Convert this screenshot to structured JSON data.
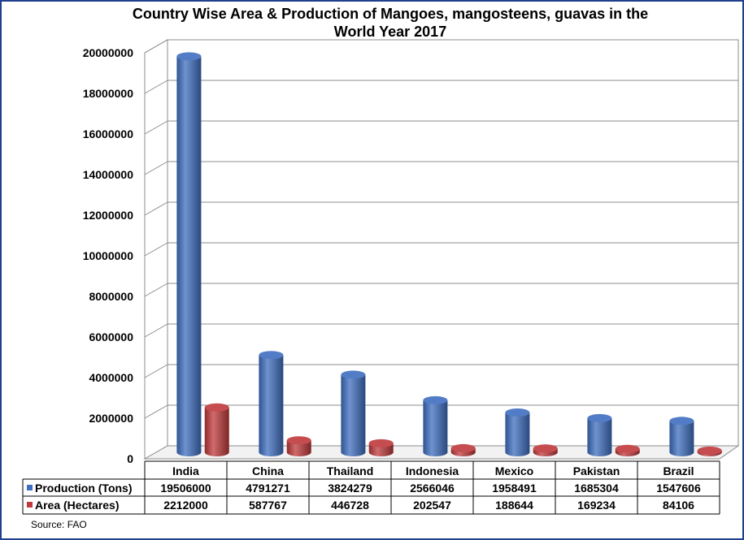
{
  "chart_data": {
    "type": "bar",
    "title": "Country Wise Area & Production of Mangoes, mangosteens, guavas in the World Year 2017",
    "categories": [
      "India",
      "China",
      "Thailand",
      "Indonesia",
      "Mexico",
      "Pakistan",
      "Brazil"
    ],
    "series": [
      {
        "name": "Production (Tons)",
        "color": "#3f6fc0",
        "values": [
          19506000,
          4791271,
          3824279,
          2566046,
          1958491,
          1685304,
          1547606
        ]
      },
      {
        "name": "Area (Hectares)",
        "color": "#c0393b",
        "values": [
          2212000,
          587767,
          446728,
          202547,
          188644,
          169234,
          84106
        ]
      }
    ],
    "ylim": [
      0,
      20000000
    ],
    "yticks": [
      0,
      2000000,
      4000000,
      6000000,
      8000000,
      10000000,
      12000000,
      14000000,
      16000000,
      18000000,
      20000000
    ],
    "ytick_labels": [
      "0",
      "2000000",
      "4000000",
      "6000000",
      "8000000",
      "10000000",
      "12000000",
      "14000000",
      "16000000",
      "18000000",
      "20000000"
    ],
    "grid": true,
    "legend": "data-table",
    "xlabel": "",
    "ylabel": ""
  },
  "title_lines": [
    "Country Wise Area & Production of Mangoes, mangosteens, guavas in the",
    "World Year 2017"
  ],
  "source": "Source: FAO",
  "table": {
    "rows": [
      {
        "label": "Production (Tons)",
        "cells": [
          "19506000",
          "4791271",
          "3824279",
          "2566046",
          "1958491",
          "1685304",
          "1547606"
        ]
      },
      {
        "label": "Area (Hectares)",
        "cells": [
          "2212000",
          "587767",
          "446728",
          "202547",
          "188644",
          "169234",
          "84106"
        ]
      }
    ]
  }
}
